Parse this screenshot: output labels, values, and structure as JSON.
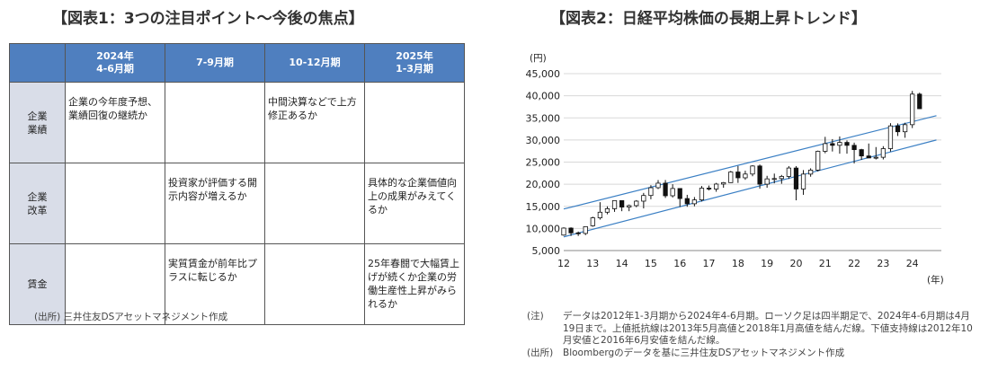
{
  "figure1": {
    "title": "【図表1：3つの注目ポイント～今後の焦点】",
    "columns": [
      "2024年\n4-6月期",
      "7-9月期",
      "10-12月期",
      "2025年\n1-3月期"
    ],
    "rows": [
      {
        "label": "企業\n業績",
        "cells": [
          "企業の今年度予想、業績回復の継続か",
          "",
          "中間決算などで上方修正あるか",
          ""
        ]
      },
      {
        "label": "企業\n改革",
        "cells": [
          "",
          "投資家が評価する開示内容が増えるか",
          "",
          "具体的な企業価値向上の成果がみえてくるか"
        ]
      },
      {
        "label": "賃金",
        "cells": [
          "",
          "実質賃金が前年比プラスに転じるか",
          "",
          "25年春闘で大幅賃上げが続くか企業の労働生産性上昇がみられるか"
        ]
      }
    ],
    "source_label": "(出所)",
    "source_text": "三井住友DSアセットマネジメント作成"
  },
  "figure2": {
    "title": "【図表2：日経平均株価の長期上昇トレンド】",
    "note_label": "(注)",
    "note_text": "データは2012年1-3月期から2024年4-6月期。ローソク足は四半期足で、2024年4-6月期は4月19日まで。上値抵抗線は2013年5月高値と2018年1月高値を結んだ線。下値支持線は2012年10月安値と2016年6月安値を結んだ線。",
    "source_label": "(出所)",
    "source_text": "Bloombergのデータを基に三井住友DSアセットマネジメント作成"
  },
  "chart_data": {
    "type": "candlestick",
    "title": "【図表2：日経平均株価の長期上昇トレンド】",
    "y_unit": "(円)",
    "x_unit": "(年)",
    "ylim": [
      5000,
      45000
    ],
    "y_ticks": [
      5000,
      10000,
      15000,
      20000,
      25000,
      30000,
      35000,
      40000,
      45000
    ],
    "y_tick_labels": [
      "5,000",
      "10,000",
      "15,000",
      "20,000",
      "25,000",
      "30,000",
      "35,000",
      "40,000",
      "45,000"
    ],
    "x_tick_labels": [
      "12",
      "13",
      "14",
      "15",
      "16",
      "17",
      "18",
      "19",
      "20",
      "21",
      "22",
      "23",
      "24"
    ],
    "grid": true,
    "series": [
      {
        "quarter": "2012Q1",
        "open": 8500,
        "high": 10250,
        "low": 8350,
        "close": 10080
      },
      {
        "quarter": "2012Q2",
        "open": 10080,
        "high": 10250,
        "low": 8300,
        "close": 9000
      },
      {
        "quarter": "2012Q3",
        "open": 9000,
        "high": 9300,
        "low": 8300,
        "close": 8870
      },
      {
        "quarter": "2012Q4",
        "open": 8870,
        "high": 10430,
        "low": 8500,
        "close": 10400
      },
      {
        "quarter": "2013Q1",
        "open": 10600,
        "high": 12650,
        "low": 10400,
        "close": 12400
      },
      {
        "quarter": "2013Q2",
        "open": 12400,
        "high": 15940,
        "low": 12000,
        "close": 13670
      },
      {
        "quarter": "2013Q3",
        "open": 13670,
        "high": 15000,
        "low": 13200,
        "close": 14460
      },
      {
        "quarter": "2013Q4",
        "open": 14460,
        "high": 16320,
        "low": 13750,
        "close": 16290
      },
      {
        "quarter": "2014Q1",
        "open": 16290,
        "high": 16160,
        "low": 13900,
        "close": 14830
      },
      {
        "quarter": "2014Q2",
        "open": 14830,
        "high": 15400,
        "low": 13900,
        "close": 15160
      },
      {
        "quarter": "2014Q3",
        "open": 15160,
        "high": 16400,
        "low": 14800,
        "close": 16170
      },
      {
        "quarter": "2014Q4",
        "open": 16170,
        "high": 18030,
        "low": 14530,
        "close": 17450
      },
      {
        "quarter": "2015Q1",
        "open": 17450,
        "high": 19780,
        "low": 16600,
        "close": 19210
      },
      {
        "quarter": "2015Q2",
        "open": 19210,
        "high": 20950,
        "low": 18900,
        "close": 20240
      },
      {
        "quarter": "2015Q3",
        "open": 20240,
        "high": 20950,
        "low": 16900,
        "close": 17390
      },
      {
        "quarter": "2015Q4",
        "open": 17390,
        "high": 20000,
        "low": 17000,
        "close": 19030
      },
      {
        "quarter": "2016Q1",
        "open": 19030,
        "high": 18900,
        "low": 14860,
        "close": 16760
      },
      {
        "quarter": "2016Q2",
        "open": 16760,
        "high": 17600,
        "low": 14900,
        "close": 15580
      },
      {
        "quarter": "2016Q3",
        "open": 15580,
        "high": 17100,
        "low": 15000,
        "close": 16450
      },
      {
        "quarter": "2016Q4",
        "open": 16450,
        "high": 19600,
        "low": 16100,
        "close": 19110
      },
      {
        "quarter": "2017Q1",
        "open": 19110,
        "high": 19700,
        "low": 18600,
        "close": 18910
      },
      {
        "quarter": "2017Q2",
        "open": 18910,
        "high": 20300,
        "low": 18300,
        "close": 20030
      },
      {
        "quarter": "2017Q3",
        "open": 20030,
        "high": 20500,
        "low": 19200,
        "close": 20360
      },
      {
        "quarter": "2017Q4",
        "open": 20360,
        "high": 23000,
        "low": 20300,
        "close": 22760
      },
      {
        "quarter": "2018Q1",
        "open": 22760,
        "high": 24130,
        "low": 20300,
        "close": 21450
      },
      {
        "quarter": "2018Q2",
        "open": 21450,
        "high": 23050,
        "low": 21000,
        "close": 22300
      },
      {
        "quarter": "2018Q3",
        "open": 22300,
        "high": 24290,
        "low": 21800,
        "close": 24120
      },
      {
        "quarter": "2018Q4",
        "open": 24120,
        "high": 24450,
        "low": 19000,
        "close": 20010
      },
      {
        "quarter": "2019Q1",
        "open": 20010,
        "high": 21900,
        "low": 19200,
        "close": 21210
      },
      {
        "quarter": "2019Q2",
        "open": 21210,
        "high": 22400,
        "low": 20200,
        "close": 21280
      },
      {
        "quarter": "2019Q3",
        "open": 21280,
        "high": 22100,
        "low": 20100,
        "close": 21760
      },
      {
        "quarter": "2019Q4",
        "open": 21760,
        "high": 24100,
        "low": 21200,
        "close": 23660
      },
      {
        "quarter": "2020Q1",
        "open": 23660,
        "high": 24100,
        "low": 16360,
        "close": 18920
      },
      {
        "quarter": "2020Q2",
        "open": 18920,
        "high": 23200,
        "low": 17600,
        "close": 22290
      },
      {
        "quarter": "2020Q3",
        "open": 22290,
        "high": 23600,
        "low": 21700,
        "close": 23190
      },
      {
        "quarter": "2020Q4",
        "open": 23190,
        "high": 27600,
        "low": 22900,
        "close": 27440
      },
      {
        "quarter": "2021Q1",
        "open": 27440,
        "high": 30710,
        "low": 27000,
        "close": 29180
      },
      {
        "quarter": "2021Q2",
        "open": 29180,
        "high": 30200,
        "low": 27400,
        "close": 28790
      },
      {
        "quarter": "2021Q3",
        "open": 28790,
        "high": 30800,
        "low": 26900,
        "close": 29450
      },
      {
        "quarter": "2021Q4",
        "open": 29450,
        "high": 29900,
        "low": 26900,
        "close": 28790
      },
      {
        "quarter": "2022Q1",
        "open": 28790,
        "high": 29400,
        "low": 24700,
        "close": 27820
      },
      {
        "quarter": "2022Q2",
        "open": 27820,
        "high": 28000,
        "low": 25500,
        "close": 26390
      },
      {
        "quarter": "2022Q3",
        "open": 26390,
        "high": 29200,
        "low": 25900,
        "close": 25940
      },
      {
        "quarter": "2022Q4",
        "open": 25940,
        "high": 28400,
        "low": 25600,
        "close": 26090
      },
      {
        "quarter": "2023Q1",
        "open": 26090,
        "high": 28600,
        "low": 25600,
        "close": 28040
      },
      {
        "quarter": "2023Q2",
        "open": 28040,
        "high": 33800,
        "low": 27400,
        "close": 33190
      },
      {
        "quarter": "2023Q3",
        "open": 33190,
        "high": 33750,
        "low": 30900,
        "close": 31860
      },
      {
        "quarter": "2023Q4",
        "open": 31860,
        "high": 33900,
        "low": 30500,
        "close": 33460
      },
      {
        "quarter": "2024Q1",
        "open": 33460,
        "high": 41090,
        "low": 32700,
        "close": 40370
      },
      {
        "quarter": "2024Q2",
        "open": 40370,
        "high": 40700,
        "low": 37000,
        "close": 37070
      }
    ],
    "trendlines": [
      {
        "name": "上値抵抗線",
        "x0": 2012.0,
        "y0": 14400,
        "x1": 2024.83,
        "y1": 35500
      },
      {
        "name": "下値支持線",
        "x0": 2012.0,
        "y0": 8100,
        "x1": 2024.83,
        "y1": 30000
      }
    ],
    "colors": {
      "up": "#ffffff",
      "down": "#111111",
      "trend": "#3a7fc4",
      "grid": "#d8d8d8"
    }
  }
}
